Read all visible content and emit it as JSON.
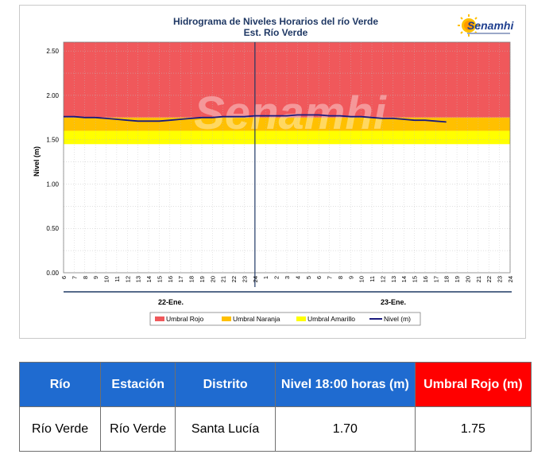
{
  "chart_data": {
    "type": "line",
    "title": "Hidrograma de Niveles Horarios del río Verde",
    "subtitle": "Est. Río Verde",
    "ylabel": "Nivel (m)",
    "xlabel": "",
    "ylim": [
      0,
      2.6
    ],
    "yticks": [
      "0.00",
      "0.50",
      "1.00",
      "1.50",
      "2.00",
      "2.50"
    ],
    "xticks": [
      "6",
      "7",
      "8",
      "9",
      "10",
      "11",
      "12",
      "13",
      "14",
      "15",
      "16",
      "17",
      "18",
      "19",
      "20",
      "21",
      "22",
      "23",
      "24",
      "1",
      "2",
      "3",
      "4",
      "5",
      "6",
      "7",
      "8",
      "9",
      "10",
      "11",
      "12",
      "13",
      "14",
      "15",
      "16",
      "17",
      "18",
      "19",
      "20",
      "21",
      "22",
      "23",
      "24"
    ],
    "day_labels": [
      "22-Ene.",
      "23-Ene."
    ],
    "thresholds": [
      {
        "name": "Umbral Rojo",
        "from": 1.75,
        "to": 2.6,
        "color": "#f0585b"
      },
      {
        "name": "Umbral Naranja",
        "from": 1.6,
        "to": 1.75,
        "color": "#ffc000"
      },
      {
        "name": "Umbral Amarillo",
        "from": 1.45,
        "to": 1.6,
        "color": "#ffff00"
      }
    ],
    "series": [
      {
        "name": "Nivel (m)",
        "color": "#1a1a7e",
        "x": [
          0,
          1,
          2,
          3,
          4,
          5,
          6,
          7,
          8,
          9,
          10,
          11,
          12,
          13,
          14,
          15,
          16,
          17,
          18,
          19,
          20,
          21,
          22,
          23,
          24,
          25,
          26,
          27,
          28,
          29,
          30,
          31,
          32,
          33,
          34,
          35,
          36
        ],
        "values": [
          1.76,
          1.76,
          1.75,
          1.75,
          1.74,
          1.73,
          1.72,
          1.71,
          1.71,
          1.71,
          1.72,
          1.73,
          1.74,
          1.75,
          1.75,
          1.76,
          1.76,
          1.76,
          1.77,
          1.77,
          1.77,
          1.77,
          1.78,
          1.78,
          1.78,
          1.77,
          1.77,
          1.76,
          1.76,
          1.75,
          1.74,
          1.74,
          1.73,
          1.72,
          1.72,
          1.71,
          1.7
        ]
      }
    ],
    "grid": true,
    "legend_position": "bottom"
  },
  "logo": {
    "name": "Senamhi",
    "watermark": "Senamhi"
  },
  "table": {
    "headers": [
      "Río",
      "Estación",
      "Distrito",
      "Nivel  18:00 horas (m)",
      "Umbral Rojo (m)"
    ],
    "rows": [
      [
        "Río Verde",
        "Río Verde",
        "Santa Lucía",
        "1.70",
        "1.75"
      ]
    ],
    "header_color": "#1f6bd0",
    "alert_header_color": "#ff0000"
  }
}
